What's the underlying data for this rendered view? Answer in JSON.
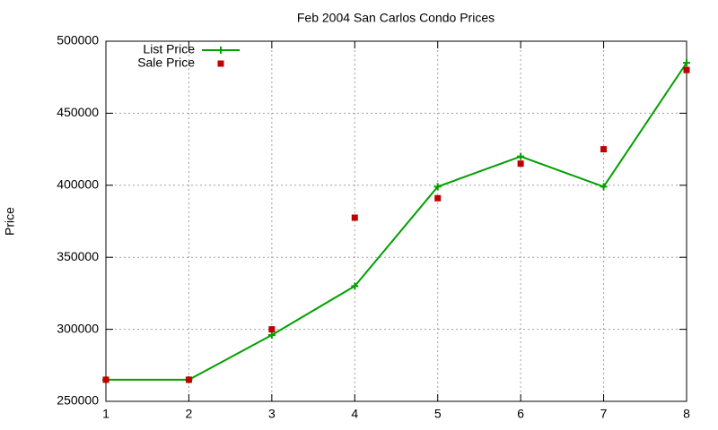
{
  "chart_data": {
    "type": "line",
    "title": "Feb 2004 San Carlos Condo Prices",
    "ylabel": "Price",
    "x": [
      1,
      2,
      3,
      4,
      5,
      6,
      7,
      8
    ],
    "series": [
      {
        "name": "List Price",
        "color": "#00a000",
        "line": true,
        "marker": "plus",
        "values": [
          265000,
          265000,
          296000,
          330000,
          399000,
          420000,
          399000,
          485000
        ]
      },
      {
        "name": "Sale Price",
        "color": "#c00000",
        "line": false,
        "marker": "square",
        "values": [
          265000,
          265000,
          300000,
          377500,
          391000,
          415000,
          425000,
          480000
        ]
      }
    ],
    "xlim": [
      1,
      8
    ],
    "xticks": [
      1,
      2,
      3,
      4,
      5,
      6,
      7,
      8
    ],
    "ylim": [
      250000,
      500000
    ],
    "yticks": [
      250000,
      300000,
      350000,
      400000,
      450000,
      500000
    ],
    "grid": true,
    "legend": "top-left"
  }
}
